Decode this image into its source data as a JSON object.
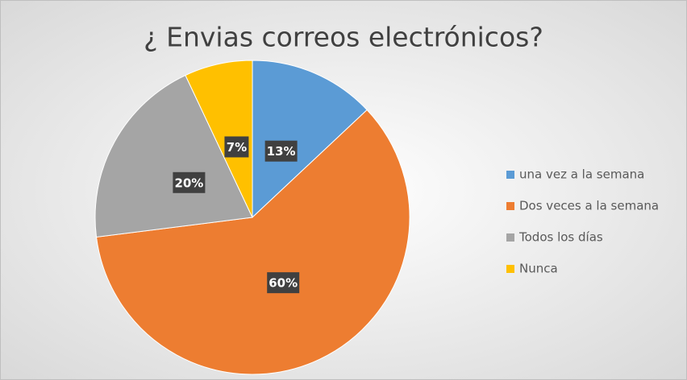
{
  "chart_data": {
    "type": "pie",
    "title": "¿ Envias correos electrónicos?",
    "categories": [
      "una vez a la semana",
      "Dos veces a la semana",
      "Todos los días",
      "Nunca"
    ],
    "values": [
      13,
      60,
      20,
      7
    ],
    "value_labels": [
      "13%",
      "60%",
      "20%",
      "7%"
    ],
    "colors": [
      "#5b9bd5",
      "#ed7d31",
      "#a5a5a5",
      "#ffc000"
    ],
    "legend": "right"
  }
}
